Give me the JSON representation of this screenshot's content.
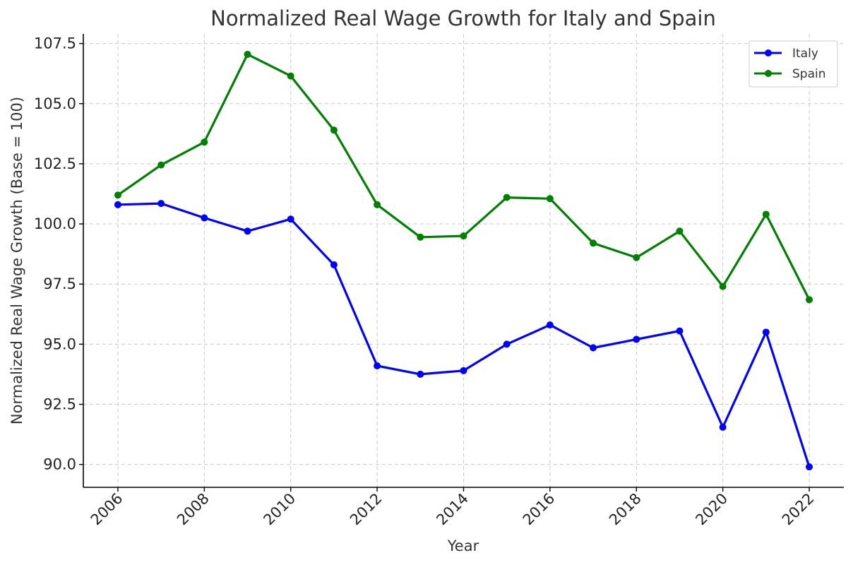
{
  "chart_data": {
    "type": "line",
    "title": "Normalized Real Wage Growth for Italy and Spain",
    "xlabel": "Year",
    "ylabel": "Normalized Real Wage Growth (Base = 100)",
    "x": [
      2006,
      2007,
      2008,
      2009,
      2010,
      2011,
      2012,
      2013,
      2014,
      2015,
      2016,
      2017,
      2018,
      2019,
      2020,
      2021,
      2022
    ],
    "x_ticks": [
      "2006",
      "2008",
      "2010",
      "2012",
      "2014",
      "2016",
      "2018",
      "2020",
      "2022"
    ],
    "y_ticks": [
      "90.0",
      "92.5",
      "95.0",
      "97.5",
      "100.0",
      "102.5",
      "105.0",
      "107.5"
    ],
    "xlim": [
      2005.2,
      2022.8
    ],
    "ylim": [
      89.05,
      107.9
    ],
    "grid": true,
    "legend_position": "top-right",
    "series": [
      {
        "name": "Italy",
        "color": "#0000ff",
        "values": [
          100.8,
          100.85,
          100.25,
          99.7,
          100.2,
          98.3,
          94.1,
          93.75,
          93.9,
          95.0,
          95.8,
          94.85,
          95.2,
          95.55,
          91.55,
          95.5,
          89.9
        ]
      },
      {
        "name": "Spain",
        "color": "#008000",
        "values": [
          101.2,
          102.45,
          103.4,
          107.05,
          106.15,
          103.9,
          100.8,
          99.45,
          99.5,
          101.1,
          101.05,
          99.2,
          98.6,
          99.7,
          97.4,
          100.4,
          96.85
        ]
      }
    ]
  }
}
